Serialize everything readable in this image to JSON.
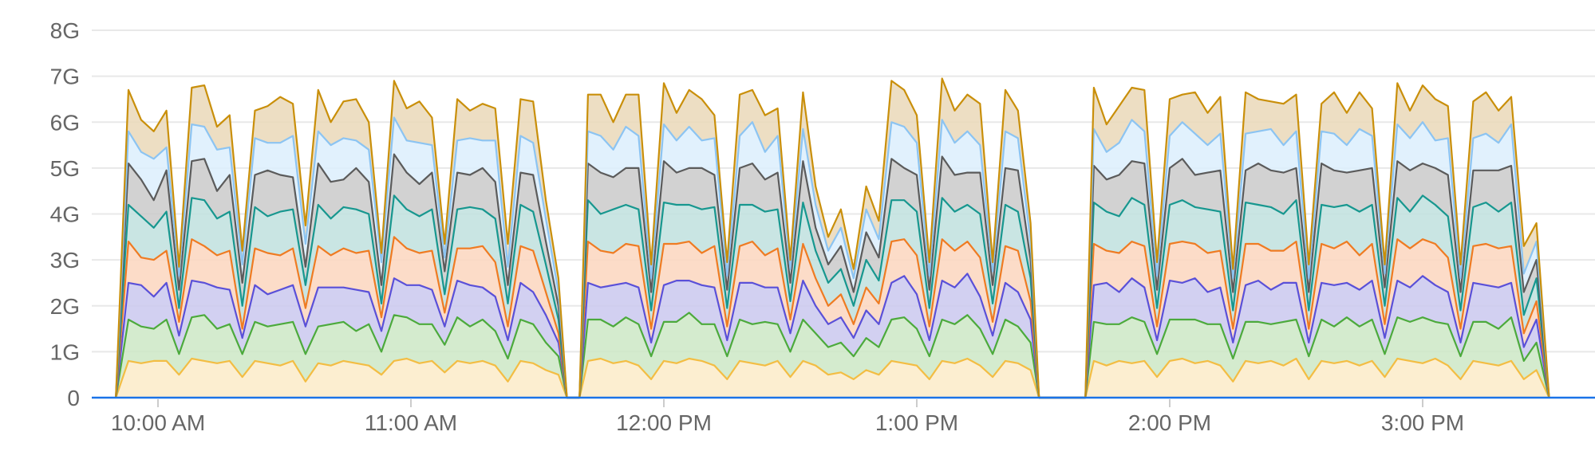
{
  "chart_data": {
    "type": "area",
    "stacked": true,
    "title": "",
    "xlabel": "",
    "ylabel": "",
    "ylim": [
      0,
      8
    ],
    "grid": true,
    "y_ticks": [
      "0",
      "1G",
      "2G",
      "3G",
      "4G",
      "5G",
      "6G",
      "7G",
      "8G"
    ],
    "x_ticks": [
      "10:00 AM",
      "11:00 AM",
      "12:00 PM",
      "1:00 PM",
      "2:00 PM",
      "3:00 PM"
    ],
    "x_tick_times": [
      "10:00",
      "11:00",
      "12:00",
      "13:00",
      "14:00",
      "15:00"
    ],
    "x": [
      "09:50",
      "09:53",
      "09:56",
      "09:59",
      "10:02",
      "10:05",
      "10:08",
      "10:11",
      "10:14",
      "10:17",
      "10:20",
      "10:23",
      "10:26",
      "10:29",
      "10:32",
      "10:35",
      "10:38",
      "10:41",
      "10:44",
      "10:47",
      "10:50",
      "10:53",
      "10:56",
      "10:59",
      "11:02",
      "11:05",
      "11:08",
      "11:11",
      "11:14",
      "11:17",
      "11:20",
      "11:23",
      "11:26",
      "11:29",
      "11:32",
      "11:35",
      "11:37",
      "11:40",
      "11:42",
      "11:45",
      "11:48",
      "11:51",
      "11:54",
      "11:57",
      "12:00",
      "12:03",
      "12:06",
      "12:09",
      "12:12",
      "12:15",
      "12:18",
      "12:21",
      "12:24",
      "12:27",
      "12:30",
      "12:33",
      "12:36",
      "12:39",
      "12:42",
      "12:45",
      "12:48",
      "12:51",
      "12:54",
      "12:57",
      "13:00",
      "13:03",
      "13:06",
      "13:09",
      "13:12",
      "13:15",
      "13:18",
      "13:21",
      "13:24",
      "13:27",
      "13:29",
      "13:40",
      "13:42",
      "13:45",
      "13:48",
      "13:51",
      "13:54",
      "13:57",
      "14:00",
      "14:03",
      "14:06",
      "14:09",
      "14:12",
      "14:15",
      "14:18",
      "14:21",
      "14:24",
      "14:27",
      "14:30",
      "14:33",
      "14:36",
      "14:39",
      "14:42",
      "14:45",
      "14:48",
      "14:51",
      "14:54",
      "14:57",
      "15:00",
      "15:03",
      "15:06",
      "15:09",
      "15:12",
      "15:15",
      "15:18",
      "15:21",
      "15:24",
      "15:27",
      "15:30"
    ],
    "unit": "G",
    "series": [
      {
        "color": "#f3bd43",
        "fill": "#fbebc8",
        "values": [
          0,
          0.8,
          0.75,
          0.8,
          0.8,
          0.5,
          0.85,
          0.8,
          0.75,
          0.8,
          0.45,
          0.8,
          0.75,
          0.7,
          0.8,
          0.35,
          0.75,
          0.7,
          0.8,
          0.75,
          0.7,
          0.5,
          0.8,
          0.85,
          0.75,
          0.8,
          0.55,
          0.8,
          0.75,
          0.8,
          0.7,
          0.35,
          0.8,
          0.75,
          0.6,
          0.5,
          0,
          0,
          0.8,
          0.85,
          0.75,
          0.8,
          0.7,
          0.4,
          0.8,
          0.75,
          0.85,
          0.8,
          0.7,
          0.4,
          0.8,
          0.75,
          0.7,
          0.8,
          0.45,
          0.8,
          0.7,
          0.5,
          0.55,
          0.4,
          0.6,
          0.5,
          0.8,
          0.75,
          0.7,
          0.4,
          0.8,
          0.75,
          0.85,
          0.7,
          0.45,
          0.8,
          0.75,
          0.6,
          0,
          0,
          0.8,
          0.7,
          0.8,
          0.75,
          0.8,
          0.45,
          0.8,
          0.85,
          0.75,
          0.8,
          0.7,
          0.35,
          0.8,
          0.75,
          0.8,
          0.7,
          0.85,
          0.4,
          0.8,
          0.75,
          0.8,
          0.7,
          0.8,
          0.45,
          0.85,
          0.8,
          0.75,
          0.85,
          0.7,
          0.4,
          0.8,
          0.75,
          0.7,
          0.8,
          0.4,
          0.6,
          0
        ]
      },
      {
        "color": "#4caa3c",
        "fill": "#cde8c6",
        "values": [
          0,
          0.9,
          0.8,
          0.7,
          0.9,
          0.45,
          0.9,
          1.0,
          0.75,
          0.8,
          0.5,
          0.85,
          0.8,
          0.9,
          0.85,
          0.6,
          0.8,
          0.9,
          0.85,
          0.7,
          0.9,
          0.5,
          1.0,
          0.9,
          0.85,
          0.8,
          0.6,
          0.95,
          0.8,
          0.9,
          0.75,
          0.5,
          0.9,
          0.85,
          0.6,
          0.4,
          0,
          0,
          0.9,
          0.85,
          0.8,
          0.95,
          0.9,
          0.5,
          0.85,
          0.9,
          1.0,
          0.8,
          0.9,
          0.5,
          0.9,
          0.85,
          0.95,
          0.8,
          0.55,
          0.9,
          0.7,
          0.6,
          0.65,
          0.5,
          0.7,
          0.6,
          0.9,
          1.0,
          0.8,
          0.5,
          0.9,
          0.85,
          0.95,
          0.8,
          0.5,
          0.9,
          0.8,
          0.6,
          0,
          0,
          0.85,
          0.9,
          0.8,
          1.0,
          0.85,
          0.5,
          0.9,
          0.85,
          0.95,
          0.8,
          0.9,
          0.5,
          0.85,
          0.9,
          0.8,
          0.95,
          0.85,
          0.5,
          0.9,
          0.8,
          0.95,
          0.85,
          0.9,
          0.5,
          0.9,
          0.85,
          1.0,
          0.8,
          0.9,
          0.5,
          0.85,
          0.9,
          0.8,
          0.95,
          0.4,
          0.6,
          0
        ]
      },
      {
        "color": "#5a50d8",
        "fill": "#cac8ef",
        "values": [
          0,
          0.8,
          0.9,
          0.7,
          0.8,
          0.4,
          0.8,
          0.7,
          0.9,
          0.75,
          0.35,
          0.8,
          0.7,
          0.75,
          0.8,
          0.6,
          0.85,
          0.8,
          0.75,
          0.9,
          0.7,
          0.45,
          0.8,
          0.7,
          0.85,
          0.75,
          0.4,
          0.8,
          0.9,
          0.7,
          0.75,
          0.4,
          0.8,
          0.7,
          0.6,
          0.3,
          0,
          0,
          0.8,
          0.7,
          0.9,
          0.75,
          0.8,
          0.3,
          0.8,
          0.9,
          0.7,
          0.85,
          0.8,
          0.35,
          0.8,
          0.9,
          0.75,
          0.8,
          0.4,
          0.85,
          0.6,
          0.5,
          0.55,
          0.4,
          0.6,
          0.5,
          0.8,
          0.9,
          0.75,
          0.35,
          0.85,
          0.8,
          0.9,
          0.7,
          0.4,
          0.8,
          0.75,
          0.5,
          0,
          0,
          0.8,
          0.9,
          0.7,
          0.85,
          0.75,
          0.3,
          0.85,
          0.8,
          0.9,
          0.7,
          0.8,
          0.35,
          0.8,
          0.9,
          0.75,
          0.85,
          0.8,
          0.3,
          0.8,
          0.9,
          0.75,
          0.8,
          0.85,
          0.35,
          0.8,
          0.75,
          0.9,
          0.8,
          0.7,
          0.3,
          0.85,
          0.8,
          0.9,
          0.75,
          0.3,
          0.5,
          0
        ]
      },
      {
        "color": "#ef7b22",
        "fill": "#fbd6be",
        "values": [
          0,
          0.9,
          0.6,
          0.8,
          0.7,
          0.3,
          0.9,
          0.8,
          0.7,
          0.85,
          0.2,
          0.8,
          0.9,
          0.75,
          0.8,
          0.4,
          0.9,
          0.7,
          0.85,
          0.8,
          0.9,
          0.3,
          0.9,
          0.8,
          0.7,
          0.85,
          0.3,
          0.7,
          0.8,
          0.9,
          0.75,
          0.3,
          0.8,
          0.9,
          0.5,
          0.2,
          0,
          0,
          0.9,
          0.8,
          0.7,
          0.85,
          0.9,
          0.3,
          0.9,
          0.8,
          0.85,
          0.7,
          0.9,
          0.3,
          0.8,
          0.9,
          0.7,
          0.85,
          0.3,
          0.8,
          0.6,
          0.4,
          0.5,
          0.3,
          0.5,
          0.45,
          0.9,
          0.8,
          0.85,
          0.3,
          0.9,
          0.8,
          0.7,
          0.85,
          0.3,
          0.8,
          0.9,
          0.4,
          0,
          0,
          0.9,
          0.7,
          0.85,
          0.8,
          0.9,
          0.3,
          0.8,
          0.9,
          0.75,
          0.85,
          0.8,
          0.3,
          0.9,
          0.8,
          0.85,
          0.7,
          0.9,
          0.3,
          0.85,
          0.8,
          0.9,
          0.75,
          0.8,
          0.3,
          0.9,
          0.85,
          0.8,
          0.9,
          0.75,
          0.3,
          0.8,
          0.9,
          0.85,
          0.8,
          0.3,
          0.4,
          0
        ]
      },
      {
        "color": "#17978f",
        "fill": "#bfe0de",
        "values": [
          0,
          0.8,
          0.9,
          0.7,
          0.85,
          0.3,
          0.9,
          1.0,
          0.8,
          0.85,
          0.5,
          0.9,
          0.8,
          0.95,
          0.85,
          0.5,
          0.9,
          0.8,
          0.9,
          0.95,
          0.8,
          0.3,
          0.9,
          0.85,
          0.8,
          0.9,
          0.4,
          0.85,
          0.9,
          0.8,
          0.95,
          0.5,
          0.9,
          0.85,
          0.6,
          0.3,
          0,
          0,
          0.9,
          0.8,
          0.95,
          0.85,
          0.8,
          0.4,
          0.9,
          0.85,
          0.8,
          0.95,
          0.85,
          0.4,
          0.9,
          0.8,
          0.95,
          0.85,
          0.4,
          0.9,
          0.6,
          0.5,
          0.55,
          0.4,
          0.6,
          0.5,
          0.9,
          0.85,
          0.95,
          0.4,
          0.9,
          0.85,
          0.8,
          0.95,
          0.4,
          0.9,
          0.85,
          0.5,
          0,
          0,
          0.9,
          0.85,
          0.8,
          0.95,
          0.9,
          0.4,
          0.85,
          0.9,
          0.8,
          0.95,
          0.85,
          0.4,
          0.9,
          0.85,
          0.95,
          0.8,
          0.9,
          0.4,
          0.85,
          0.9,
          0.8,
          0.95,
          0.85,
          0.4,
          0.9,
          0.8,
          0.95,
          0.85,
          0.9,
          0.4,
          0.85,
          0.9,
          0.8,
          0.95,
          0.4,
          0.5,
          0
        ]
      },
      {
        "color": "#5b5b5b",
        "fill": "#cacaca",
        "values": [
          0,
          0.9,
          0.8,
          0.6,
          0.9,
          0.4,
          0.8,
          0.9,
          0.6,
          0.8,
          0.5,
          0.7,
          1.0,
          0.8,
          0.7,
          0.4,
          0.9,
          0.8,
          0.6,
          0.9,
          0.7,
          0.4,
          0.9,
          0.8,
          0.7,
          0.8,
          0.5,
          0.8,
          0.7,
          0.9,
          0.8,
          0.4,
          0.7,
          0.8,
          0.5,
          0.3,
          0,
          0,
          0.8,
          0.9,
          0.7,
          0.8,
          0.9,
          0.4,
          0.9,
          0.7,
          0.8,
          0.9,
          0.7,
          0.4,
          0.8,
          0.9,
          0.7,
          0.8,
          0.4,
          0.9,
          0.5,
          0.4,
          0.5,
          0.3,
          0.6,
          0.5,
          0.9,
          0.7,
          0.8,
          0.4,
          0.9,
          0.8,
          0.7,
          0.9,
          0.4,
          0.8,
          0.9,
          0.4,
          0,
          0,
          0.8,
          0.7,
          0.9,
          0.8,
          0.9,
          0.4,
          0.8,
          0.9,
          0.7,
          0.8,
          0.9,
          0.4,
          0.7,
          0.9,
          0.8,
          0.9,
          0.7,
          0.4,
          0.9,
          0.8,
          0.7,
          0.9,
          0.8,
          0.4,
          0.8,
          0.9,
          0.7,
          0.8,
          0.9,
          0.4,
          0.8,
          0.7,
          0.9,
          0.8,
          0.5,
          0.4,
          0
        ]
      },
      {
        "color": "#8cc4f2",
        "fill": "#dceefd",
        "values": [
          0,
          0.7,
          0.6,
          0.9,
          0.5,
          0.3,
          0.8,
          0.7,
          0.9,
          0.6,
          0.4,
          0.8,
          0.6,
          0.7,
          0.9,
          0.5,
          0.7,
          0.8,
          0.9,
          0.6,
          0.7,
          0.5,
          0.8,
          0.7,
          0.9,
          0.6,
          0.3,
          0.7,
          0.8,
          0.6,
          0.9,
          0.4,
          0.8,
          0.7,
          0.5,
          0.3,
          0,
          0,
          0.7,
          0.8,
          0.6,
          0.9,
          0.7,
          0.3,
          0.8,
          0.7,
          0.9,
          0.6,
          0.8,
          0.3,
          0.7,
          0.9,
          0.6,
          0.8,
          0.3,
          0.7,
          0.5,
          0.3,
          0.4,
          0.3,
          0.5,
          0.4,
          0.8,
          0.9,
          0.7,
          0.3,
          0.8,
          0.7,
          0.9,
          0.6,
          0.3,
          0.8,
          0.7,
          0.4,
          0,
          0,
          0.8,
          0.6,
          0.7,
          0.9,
          0.7,
          0.3,
          0.7,
          0.8,
          0.9,
          0.6,
          0.8,
          0.3,
          0.8,
          0.7,
          0.9,
          0.6,
          0.8,
          0.3,
          0.7,
          0.8,
          0.6,
          0.9,
          0.7,
          0.3,
          0.8,
          0.7,
          0.9,
          0.6,
          0.8,
          0.3,
          0.7,
          0.8,
          0.6,
          0.9,
          0.4,
          0.4,
          0
        ]
      },
      {
        "color": "#c98f0a",
        "fill": "#ead8b9",
        "values": [
          0,
          0.9,
          0.7,
          0.6,
          0.8,
          0.2,
          0.8,
          0.9,
          0.5,
          0.7,
          0.3,
          0.6,
          0.8,
          1.0,
          0.7,
          0.4,
          0.9,
          0.5,
          0.8,
          0.9,
          0.6,
          0.2,
          0.8,
          0.7,
          0.9,
          0.6,
          0.3,
          0.9,
          0.6,
          0.8,
          0.7,
          0.5,
          0.8,
          0.9,
          0.4,
          0.3,
          0,
          0,
          0.8,
          0.9,
          0.6,
          0.7,
          0.9,
          0.3,
          0.9,
          0.6,
          0.8,
          0.9,
          0.5,
          0.3,
          0.9,
          0.7,
          0.8,
          0.6,
          0.2,
          0.8,
          0.4,
          0.3,
          0.4,
          0.2,
          0.5,
          0.4,
          0.9,
          0.8,
          0.6,
          0.3,
          0.9,
          0.7,
          0.8,
          0.9,
          0.2,
          0.9,
          0.6,
          0.4,
          0,
          0,
          0.9,
          0.6,
          0.8,
          0.7,
          0.9,
          0.3,
          0.8,
          0.6,
          0.9,
          0.7,
          0.8,
          0.2,
          0.9,
          0.7,
          0.6,
          0.9,
          0.8,
          0.3,
          0.6,
          0.9,
          0.7,
          0.8,
          0.6,
          0.2,
          0.9,
          0.6,
          0.8,
          0.9,
          0.7,
          0.3,
          0.8,
          0.9,
          0.7,
          0.6,
          0.6,
          0.4,
          0
        ]
      }
    ],
    "axis_color": "#1a73e8",
    "grid_color": "#e8e8e8"
  }
}
